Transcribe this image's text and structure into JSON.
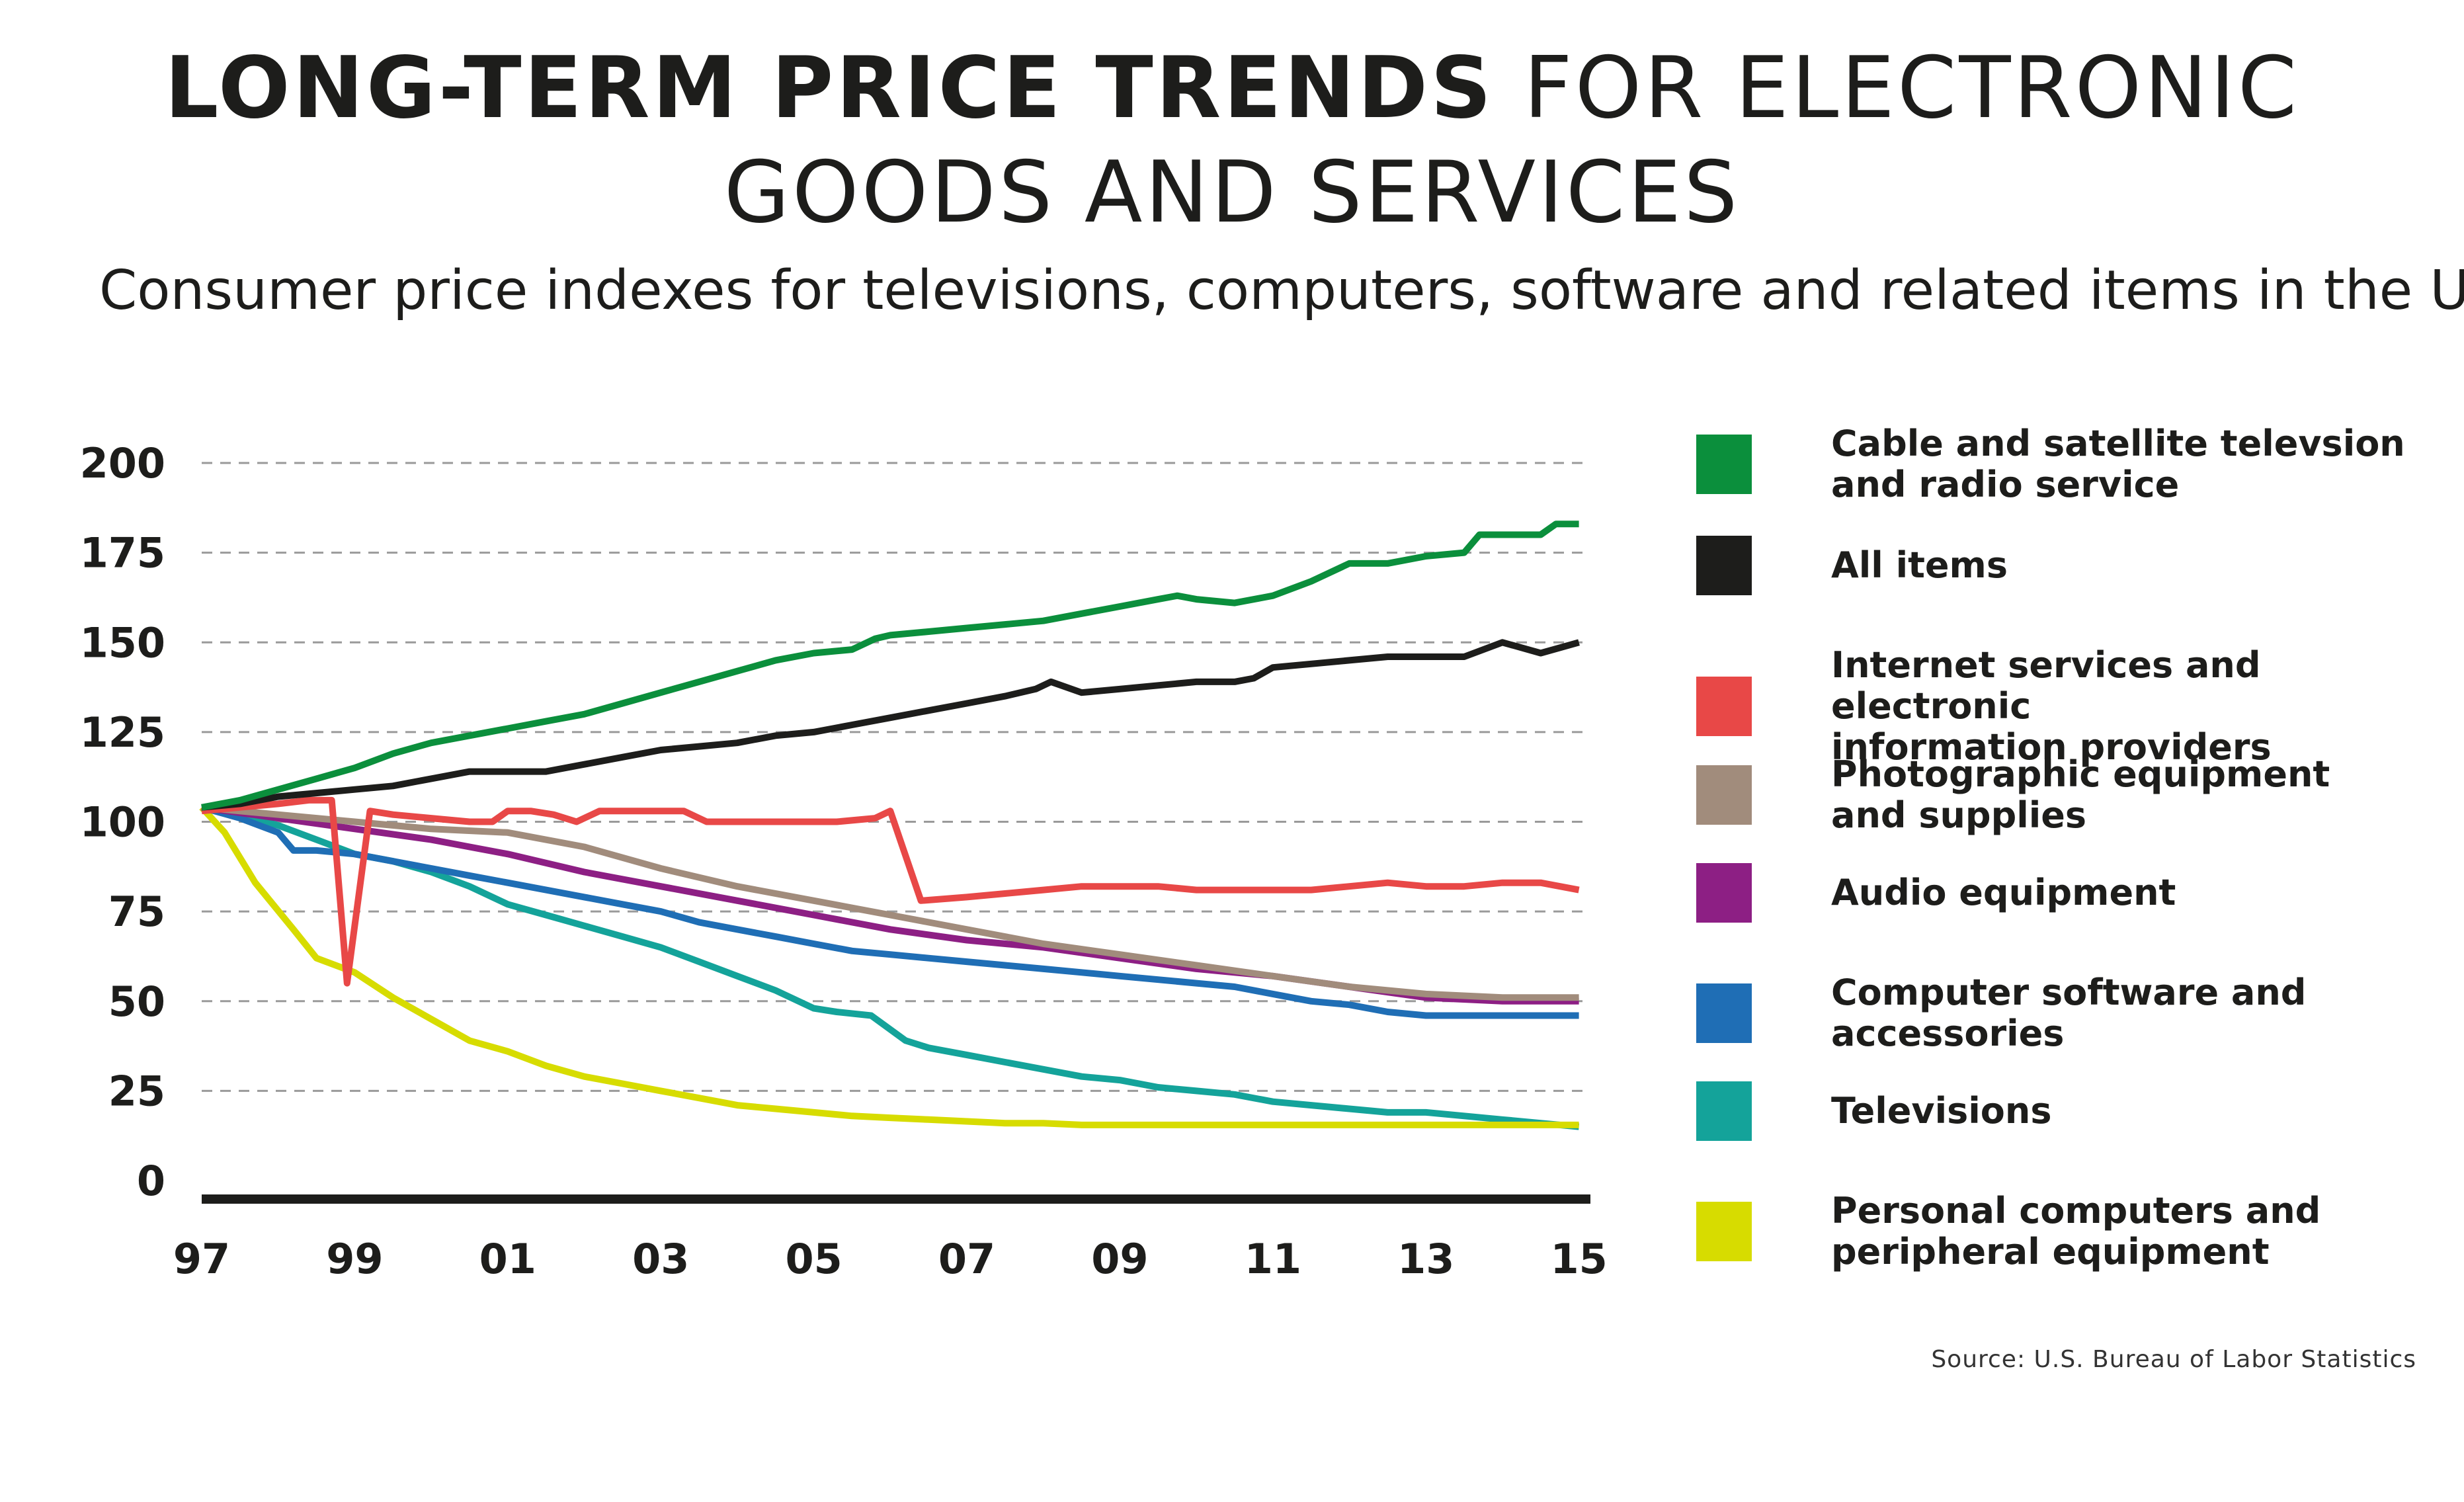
{
  "title": {
    "bold": "LONG-TERM PRICE TRENDS",
    "rest": " FOR ELECTRONIC",
    "line2": "GOODS AND SERVICES"
  },
  "subtitle": "Consumer price indexes for televisions, computers, software and related items in the U.S",
  "source": "Source: U.S. Bureau of Labor Statistics",
  "chart_data": {
    "type": "line",
    "title": "LONG-TERM PRICE TRENDS FOR ELECTRONIC GOODS AND SERVICES",
    "subtitle": "Consumer price indexes for televisions, computers, software and related items in the U.S",
    "xlabel": "",
    "ylabel": "",
    "xlim": [
      1997,
      2015.15
    ],
    "ylim": [
      0,
      200
    ],
    "grid": "horizontal dashed",
    "legend": "right",
    "x_ticks": [
      {
        "value": 1997,
        "label": "97"
      },
      {
        "value": 1999,
        "label": "99"
      },
      {
        "value": 2001,
        "label": "01"
      },
      {
        "value": 2003,
        "label": "03"
      },
      {
        "value": 2005,
        "label": "05"
      },
      {
        "value": 2007,
        "label": "07"
      },
      {
        "value": 2009,
        "label": "09"
      },
      {
        "value": 2011,
        "label": "11"
      },
      {
        "value": 2013,
        "label": "13"
      },
      {
        "value": 2015,
        "label": "15"
      }
    ],
    "y_ticks": [
      200,
      175,
      150,
      125,
      100,
      75,
      50,
      25,
      0
    ],
    "series": [
      {
        "name": "Cable and satellite televsion\nand radio service",
        "color": "#0b8f3c",
        "x": [
          1997,
          1997.5,
          1998,
          1998.5,
          1999,
          1999.5,
          2000,
          2000.5,
          2001,
          2001.5,
          2002,
          2002.5,
          2003,
          2003.5,
          2004,
          2004.5,
          2005,
          2005.5,
          2005.8,
          2006,
          2006.5,
          2007,
          2007.5,
          2008,
          2008.5,
          2009,
          2009.5,
          2009.75,
          2010,
          2010.5,
          2011,
          2011.5,
          2012,
          2012.5,
          2013,
          2013.5,
          2013.7,
          2014,
          2014.5,
          2014.7,
          2015
        ],
        "values": [
          104,
          106,
          109,
          112,
          115,
          119,
          122,
          124,
          126,
          128,
          130,
          133,
          136,
          139,
          142,
          145,
          147,
          148,
          151,
          152,
          153,
          154,
          155,
          156,
          158,
          160,
          162,
          163,
          162,
          161,
          163,
          167,
          172,
          172,
          174,
          175,
          180,
          180,
          180,
          183,
          183
        ]
      },
      {
        "name": "All items",
        "color": "#1d1d1b",
        "x": [
          1997,
          1997.5,
          1998,
          1998.5,
          1999,
          1999.5,
          2000,
          2000.5,
          2001,
          2001.5,
          2002,
          2002.5,
          2003,
          2003.5,
          2004,
          2004.5,
          2005,
          2005.5,
          2006,
          2006.5,
          2007,
          2007.5,
          2007.9,
          2008.1,
          2008.5,
          2009,
          2009.5,
          2010,
          2010.5,
          2010.75,
          2011,
          2011.5,
          2012,
          2012.5,
          2013,
          2013.5,
          2014,
          2014.5,
          2015
        ],
        "values": [
          104,
          105,
          107,
          108,
          109,
          110,
          112,
          114,
          114,
          114,
          116,
          118,
          120,
          121,
          122,
          124,
          125,
          127,
          129,
          131,
          133,
          135,
          137,
          139,
          136,
          137,
          138,
          139,
          139,
          140,
          143,
          144,
          145,
          146,
          146,
          146,
          150,
          147,
          150
        ]
      },
      {
        "name": "Internet services and electronic\ninformation providers",
        "color": "#e84847",
        "x": [
          1997,
          1997.5,
          1998,
          1998.4,
          1998.7,
          1998.9,
          1999.2,
          1999.5,
          2000,
          2000.5,
          2000.8,
          2001,
          2001.3,
          2001.6,
          2001.9,
          2002.2,
          2002.5,
          2003,
          2003.3,
          2003.6,
          2004,
          2004.5,
          2005,
          2005.3,
          2005.8,
          2006,
          2006.4,
          2007,
          2007.5,
          2008,
          2008.5,
          2009,
          2009.5,
          2010,
          2010.5,
          2011,
          2011.5,
          2012,
          2012.5,
          2013,
          2013.5,
          2014,
          2014.5,
          2015
        ],
        "values": [
          103,
          104,
          105,
          106,
          106,
          55,
          103,
          102,
          101,
          100,
          100,
          103,
          103,
          102,
          100,
          103,
          103,
          103,
          103,
          100,
          100,
          100,
          100,
          100,
          101,
          103,
          78,
          79,
          80,
          81,
          82,
          82,
          82,
          81,
          81,
          81,
          81,
          82,
          83,
          82,
          82,
          83,
          83,
          81
        ]
      },
      {
        "name": "Photographic equipment\nand supplies",
        "color": "#a18c7c",
        "x": [
          1997,
          1998,
          1999,
          2000,
          2001,
          2002,
          2003,
          2004,
          2005,
          2006,
          2007,
          2008,
          2009,
          2010,
          2011,
          2012,
          2013,
          2014,
          2015
        ],
        "values": [
          104,
          102,
          100,
          98,
          97,
          93,
          87,
          82,
          78,
          74,
          70,
          66,
          63,
          60,
          57,
          54,
          52,
          51,
          51
        ]
      },
      {
        "name": "Audio equipment",
        "color": "#8d1f84",
        "x": [
          1997,
          1998,
          1999,
          2000,
          2001,
          2002,
          2003,
          2004,
          2005,
          2006,
          2007,
          2008,
          2009,
          2010,
          2011,
          2012,
          2013,
          2014,
          2015
        ],
        "values": [
          104,
          101,
          98,
          95,
          91,
          86,
          82,
          78,
          74,
          70,
          67,
          65,
          62,
          59,
          57,
          54,
          51,
          50,
          50
        ]
      },
      {
        "name": "Computer software and accessories",
        "color": "#1f6eb5",
        "x": [
          1997,
          1997.5,
          1998,
          1998.2,
          1998.5,
          1999,
          1999.5,
          2000,
          2000.5,
          2001,
          2001.5,
          2002,
          2002.5,
          2003,
          2003.5,
          2004,
          2004.5,
          2005,
          2005.5,
          2006,
          2006.5,
          2007,
          2007.5,
          2008,
          2008.5,
          2009,
          2009.5,
          2010,
          2010.5,
          2011,
          2011.5,
          2012,
          2012.5,
          2013,
          2013.5,
          2014,
          2014.5,
          2015
        ],
        "values": [
          104,
          101,
          97,
          92,
          92,
          91,
          89,
          87,
          85,
          83,
          81,
          79,
          77,
          75,
          72,
          70,
          68,
          66,
          64,
          63,
          62,
          61,
          60,
          59,
          58,
          57,
          56,
          55,
          54,
          52,
          50,
          49,
          47,
          46,
          46,
          46,
          46,
          46
        ]
      },
      {
        "name": "Televisions",
        "color": "#14a39a",
        "x": [
          1997,
          1997.5,
          1998,
          1998.5,
          1999,
          1999.5,
          2000,
          2000.5,
          2001,
          2001.5,
          2002,
          2002.5,
          2003,
          2003.5,
          2004,
          2004.5,
          2005,
          2005.3,
          2005.75,
          2006.2,
          2006.5,
          2007,
          2007.5,
          2008,
          2008.5,
          2009,
          2009.5,
          2010,
          2010.5,
          2011,
          2011.5,
          2012,
          2012.5,
          2013,
          2013.5,
          2014,
          2014.5,
          2015
        ],
        "values": [
          104,
          102,
          99,
          95,
          91,
          89,
          86,
          82,
          77,
          74,
          71,
          68,
          65,
          61,
          57,
          53,
          48,
          47,
          46,
          39,
          37,
          35,
          33,
          31,
          29,
          28,
          26,
          25,
          24,
          22,
          21,
          20,
          19,
          19,
          18,
          17,
          16,
          15
        ]
      },
      {
        "name": "Personal computers and\nperipheral equipment",
        "color": "#d7dc00",
        "x": [
          1997,
          1997.3,
          1997.7,
          1998.2,
          1998.5,
          1999,
          1999.5,
          2000,
          2000.5,
          2001,
          2001.5,
          2002,
          2002.5,
          2003,
          2003.5,
          2004,
          2004.5,
          2005,
          2005.5,
          2006,
          2006.5,
          2007,
          2007.5,
          2008,
          2008.5,
          2009,
          2009.5,
          2010,
          2010.5,
          2011,
          2011.5,
          2012,
          2012.5,
          2013,
          2013.5,
          2014,
          2014.5,
          2015
        ],
        "values": [
          104,
          97,
          83,
          70,
          62,
          58,
          51,
          45,
          39,
          36,
          32,
          29,
          27,
          25,
          23,
          21,
          20,
          19,
          18,
          17.5,
          17,
          16.5,
          16,
          16,
          15.5,
          15.5,
          15.5,
          15.5,
          15.5,
          15.5,
          15.5,
          15.5,
          15.5,
          15.5,
          15.5,
          15.5,
          15.5,
          15.5
        ]
      }
    ]
  }
}
